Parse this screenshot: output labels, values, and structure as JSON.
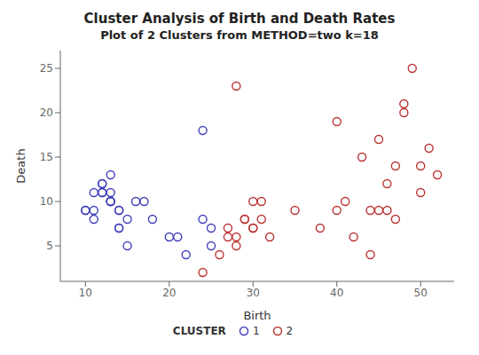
{
  "chart_data": {
    "type": "scatter",
    "title": "Cluster Analysis of Birth and Death Rates",
    "subtitle": "Plot of 2 Clusters from METHOD=two k=18",
    "x_label": "Birth",
    "y_label": "Death",
    "xlim": [
      7,
      54
    ],
    "ylim": [
      1,
      27
    ],
    "xticks": [
      10,
      20,
      30,
      40,
      50
    ],
    "yticks": [
      5,
      10,
      15,
      20,
      25
    ],
    "grid": false,
    "legend": "bottom",
    "legend_title": "CLUSTER",
    "series": [
      {
        "name": "1",
        "color": "#4040bb",
        "marker": "circle",
        "x": [
          10,
          10,
          11,
          11,
          11,
          12,
          12,
          12,
          12,
          13,
          13,
          13,
          13,
          13,
          14,
          14,
          14,
          14,
          15,
          15,
          16,
          17,
          18,
          20,
          21,
          22,
          24,
          24,
          25,
          25
        ],
        "values": [
          9,
          9,
          8,
          9,
          11,
          12,
          12,
          11,
          11,
          10,
          10,
          10,
          11,
          13,
          9,
          9,
          7,
          7,
          8,
          5,
          10,
          10,
          8,
          6,
          6,
          4,
          18,
          8,
          7,
          5
        ]
      },
      {
        "name": "2",
        "color": "#bb3333",
        "marker": "circle",
        "x": [
          24,
          26,
          27,
          27,
          28,
          28,
          28,
          29,
          29,
          30,
          30,
          30,
          31,
          31,
          32,
          35,
          38,
          40,
          40,
          41,
          42,
          43,
          44,
          44,
          45,
          45,
          46,
          46,
          47,
          47,
          48,
          48,
          49,
          50,
          50,
          51,
          52
        ],
        "values": [
          2,
          4,
          7,
          6,
          23,
          5,
          6,
          8,
          8,
          7,
          7,
          10,
          10,
          8,
          6,
          9,
          7,
          9,
          19,
          10,
          6,
          15,
          9,
          4,
          17,
          9,
          12,
          9,
          14,
          8,
          21,
          20,
          25,
          11,
          14,
          16,
          13
        ]
      }
    ]
  }
}
